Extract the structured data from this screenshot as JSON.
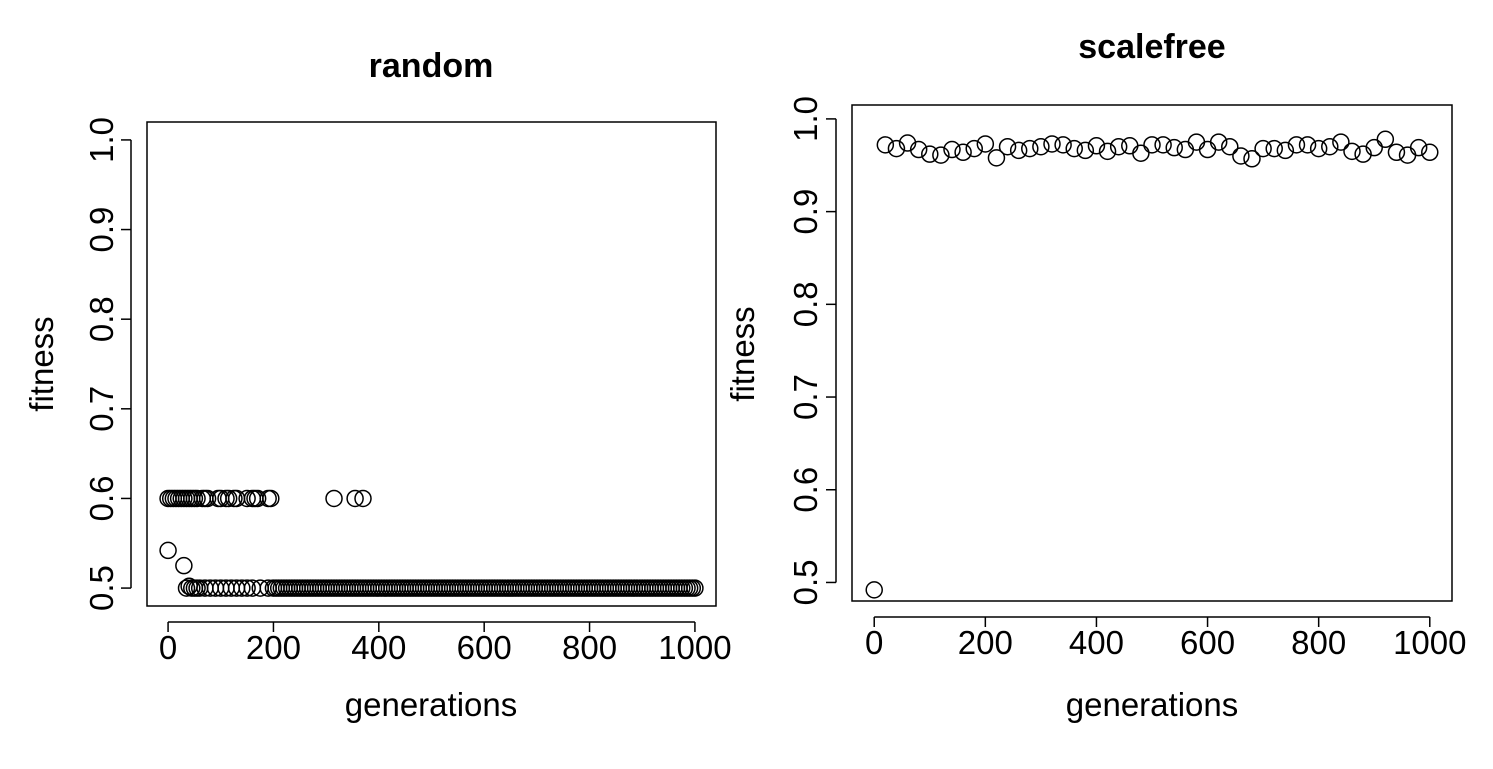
{
  "chart_data": [
    {
      "type": "scatter",
      "title": "random",
      "xlabel": "generations",
      "ylabel": "fitness",
      "xlim": [
        -40,
        1040
      ],
      "ylim": [
        0.48,
        1.02
      ],
      "x_ticks": [
        0,
        200,
        400,
        600,
        800,
        1000
      ],
      "x_tick_labels": [
        "0",
        "200",
        "400",
        "600",
        "800",
        "1000"
      ],
      "y_ticks": [
        0.5,
        0.6,
        0.7,
        0.8,
        0.9,
        1.0
      ],
      "y_tick_labels": [
        "0.5",
        "0.6",
        "0.7",
        "0.8",
        "0.9",
        "1.0"
      ],
      "grid": false,
      "marker": "open-circle",
      "series": [
        {
          "points": [
            [
              0,
              0.542
            ],
            [
              30,
              0.525
            ],
            [
              0,
              0.6
            ],
            [
              5,
              0.6
            ],
            [
              10,
              0.6
            ],
            [
              15,
              0.6
            ],
            [
              20,
              0.6
            ],
            [
              25,
              0.6
            ],
            [
              30,
              0.6
            ],
            [
              35,
              0.6
            ],
            [
              40,
              0.6
            ],
            [
              45,
              0.6
            ],
            [
              50,
              0.6
            ],
            [
              55,
              0.6
            ],
            [
              65,
              0.6
            ],
            [
              70,
              0.6
            ],
            [
              75,
              0.6
            ],
            [
              95,
              0.6
            ],
            [
              100,
              0.6
            ],
            [
              110,
              0.6
            ],
            [
              115,
              0.6
            ],
            [
              125,
              0.6
            ],
            [
              130,
              0.6
            ],
            [
              150,
              0.6
            ],
            [
              160,
              0.6
            ],
            [
              165,
              0.6
            ],
            [
              170,
              0.6
            ],
            [
              190,
              0.6
            ],
            [
              195,
              0.6
            ],
            [
              315,
              0.6
            ],
            [
              355,
              0.6
            ],
            [
              370,
              0.6
            ],
            [
              35,
              0.5
            ],
            [
              40,
              0.502
            ],
            [
              45,
              0.5
            ],
            [
              50,
              0.5
            ],
            [
              55,
              0.5
            ],
            [
              60,
              0.5
            ],
            [
              70,
              0.5
            ],
            [
              80,
              0.5
            ],
            [
              90,
              0.5
            ],
            [
              100,
              0.5
            ],
            [
              110,
              0.5
            ],
            [
              120,
              0.5
            ],
            [
              130,
              0.5
            ],
            [
              140,
              0.5
            ],
            [
              150,
              0.5
            ],
            [
              160,
              0.5
            ],
            [
              175,
              0.5
            ],
            [
              190,
              0.5
            ]
          ],
          "dense_range": {
            "x_from": 200,
            "x_to": 1000,
            "x_step": 5,
            "y": 0.5
          }
        }
      ]
    },
    {
      "type": "scatter",
      "title": "scalefree",
      "xlabel": "generations",
      "ylabel": "fitness",
      "xlim": [
        -40,
        1040
      ],
      "ylim": [
        0.48,
        1.015
      ],
      "x_ticks": [
        0,
        200,
        400,
        600,
        800,
        1000
      ],
      "x_tick_labels": [
        "0",
        "200",
        "400",
        "600",
        "800",
        "1000"
      ],
      "y_ticks": [
        0.5,
        0.6,
        0.7,
        0.8,
        0.9,
        1.0
      ],
      "y_tick_labels": [
        "0.5",
        "0.6",
        "0.7",
        "0.8",
        "0.9",
        "1.0"
      ],
      "grid": false,
      "marker": "open-circle",
      "series": [
        {
          "points": [
            [
              0,
              0.492
            ],
            [
              20,
              0.972
            ],
            [
              40,
              0.968
            ],
            [
              60,
              0.974
            ],
            [
              80,
              0.967
            ],
            [
              100,
              0.962
            ],
            [
              120,
              0.961
            ],
            [
              140,
              0.967
            ],
            [
              160,
              0.964
            ],
            [
              180,
              0.968
            ],
            [
              200,
              0.973
            ],
            [
              220,
              0.958
            ],
            [
              240,
              0.97
            ],
            [
              260,
              0.966
            ],
            [
              280,
              0.968
            ],
            [
              300,
              0.97
            ],
            [
              320,
              0.973
            ],
            [
              340,
              0.972
            ],
            [
              360,
              0.968
            ],
            [
              380,
              0.966
            ],
            [
              400,
              0.971
            ],
            [
              420,
              0.965
            ],
            [
              440,
              0.97
            ],
            [
              460,
              0.971
            ],
            [
              480,
              0.963
            ],
            [
              500,
              0.972
            ],
            [
              520,
              0.972
            ],
            [
              540,
              0.969
            ],
            [
              560,
              0.967
            ],
            [
              580,
              0.975
            ],
            [
              600,
              0.967
            ],
            [
              620,
              0.975
            ],
            [
              640,
              0.97
            ],
            [
              660,
              0.96
            ],
            [
              680,
              0.957
            ],
            [
              700,
              0.968
            ],
            [
              720,
              0.968
            ],
            [
              740,
              0.966
            ],
            [
              760,
              0.972
            ],
            [
              780,
              0.972
            ],
            [
              800,
              0.968
            ],
            [
              820,
              0.97
            ],
            [
              840,
              0.975
            ],
            [
              860,
              0.965
            ],
            [
              880,
              0.962
            ],
            [
              900,
              0.969
            ],
            [
              920,
              0.978
            ],
            [
              940,
              0.964
            ],
            [
              960,
              0.961
            ],
            [
              980,
              0.969
            ],
            [
              1000,
              0.964
            ]
          ]
        }
      ]
    }
  ]
}
